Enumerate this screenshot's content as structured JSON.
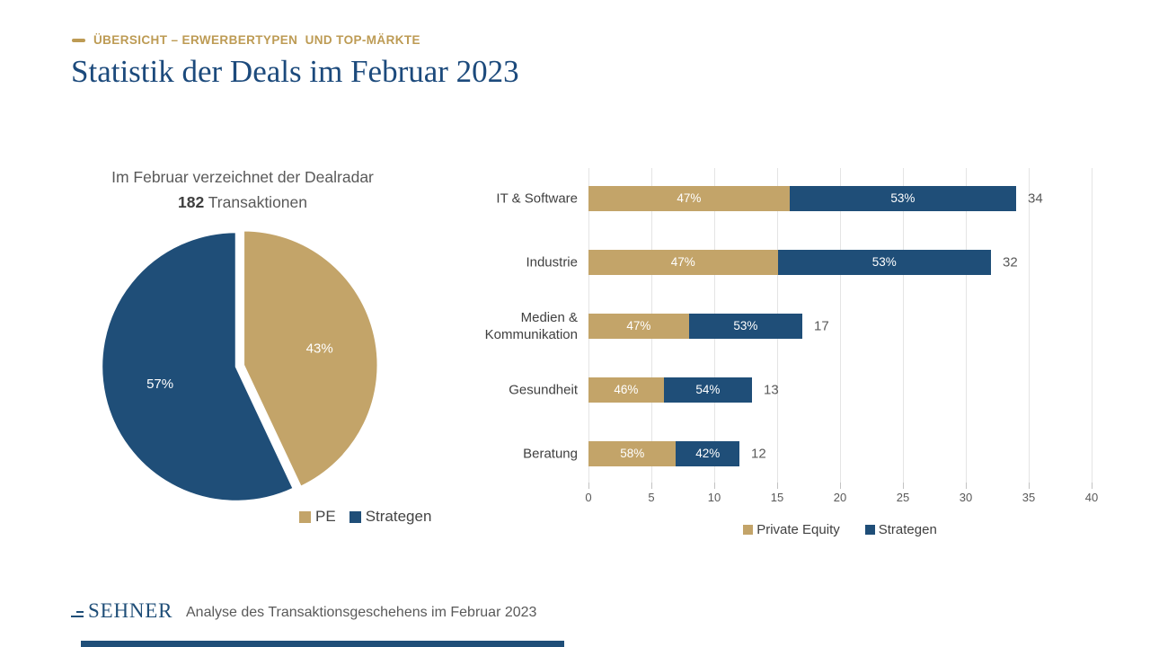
{
  "header": {
    "kicker": "ÜBERSICHT – ERWERBERTYPEN  UND TOP-MÄRKTE",
    "title": "Statistik der Deals im Februar 2023"
  },
  "pie_section": {
    "caption_line1": "Im Februar verzeichnet der Dealradar",
    "caption_bold": "182",
    "caption_rest": "Transaktionen",
    "legend": [
      {
        "label": "PE",
        "color": "#C3A469"
      },
      {
        "label": "Strategen",
        "color": "#1F4E78"
      }
    ]
  },
  "bar_section": {
    "legend": [
      {
        "label": "Private Equity",
        "color": "#C3A469"
      },
      {
        "label": "Strategen",
        "color": "#1F4E78"
      }
    ]
  },
  "footer": {
    "logo_text": "SEHNER",
    "caption": "Analyse des Transaktionsgeschehens im Februar 2023"
  },
  "colors": {
    "gold": "#C3A469",
    "navy": "#1F4E78",
    "title_navy": "#1C4A7C",
    "kicker_gold": "#BD9B54",
    "grid": "#E4E4E4"
  },
  "chart_data": [
    {
      "type": "pie",
      "title": "Im Februar verzeichnet der Dealradar 182 Transaktionen",
      "total_transactions": 182,
      "labels": [
        "PE",
        "Strategen"
      ],
      "values": [
        43,
        57
      ],
      "unit": "%",
      "colors": [
        "#C3A469",
        "#1F4E78"
      ],
      "start_angle_deg": 0,
      "direction": "clockwise",
      "exploded_slice": "PE",
      "legend_position": "bottom-right"
    },
    {
      "type": "bar",
      "orientation": "horizontal",
      "stacked": true,
      "categories": [
        "IT & Software",
        "Industrie",
        "Medien & Kommunikation",
        "Gesundheit",
        "Beratung"
      ],
      "series": [
        {
          "name": "Private Equity",
          "color": "#C3A469",
          "percent": [
            47,
            47,
            47,
            46,
            58
          ]
        },
        {
          "name": "Strategen",
          "color": "#1F4E78",
          "percent": [
            53,
            53,
            53,
            54,
            42
          ]
        }
      ],
      "totals": [
        34,
        32,
        17,
        13,
        12
      ],
      "xlim": [
        0,
        40
      ],
      "x_ticks": [
        0,
        5,
        10,
        15,
        20,
        25,
        30,
        35,
        40
      ],
      "grid": true,
      "legend_position": "bottom"
    }
  ]
}
